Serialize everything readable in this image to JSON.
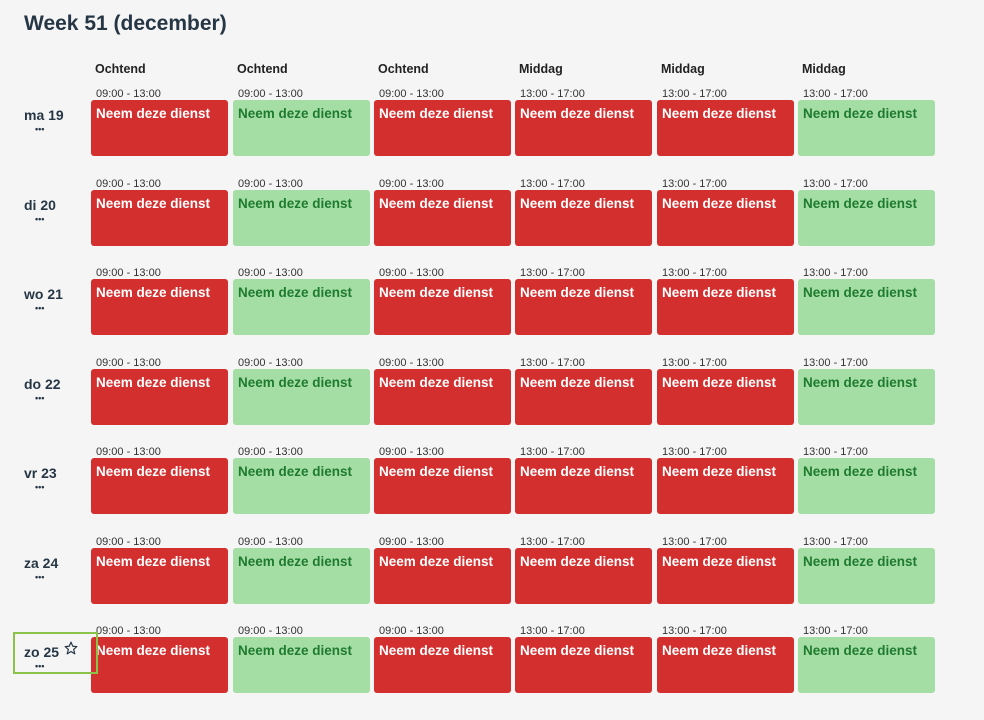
{
  "title": "Week 51 (december)",
  "columns": [
    {
      "label": "Ochtend",
      "time": "09:00 - 13:00",
      "status": "red"
    },
    {
      "label": "Ochtend",
      "time": "09:00 - 13:00",
      "status": "green"
    },
    {
      "label": "Ochtend",
      "time": "09:00 - 13:00",
      "status": "red"
    },
    {
      "label": "Middag",
      "time": "13:00 - 17:00",
      "status": "red"
    },
    {
      "label": "Middag",
      "time": "13:00 - 17:00",
      "status": "red"
    },
    {
      "label": "Middag",
      "time": "13:00 - 17:00",
      "status": "green"
    }
  ],
  "button_label": "Neem deze dienst",
  "more_label": "•••",
  "days": [
    {
      "label": "ma 19"
    },
    {
      "label": "di 20"
    },
    {
      "label": "wo 21"
    },
    {
      "label": "do 22"
    },
    {
      "label": "vr 23"
    },
    {
      "label": "za 24"
    },
    {
      "label": "zo 25",
      "highlighted": true,
      "icon": "star-icon"
    }
  ],
  "colors": {
    "red": "#d32f2f",
    "green": "#a5dea5",
    "green_text": "#1e7b2e",
    "highlight": "#8bc34a"
  }
}
